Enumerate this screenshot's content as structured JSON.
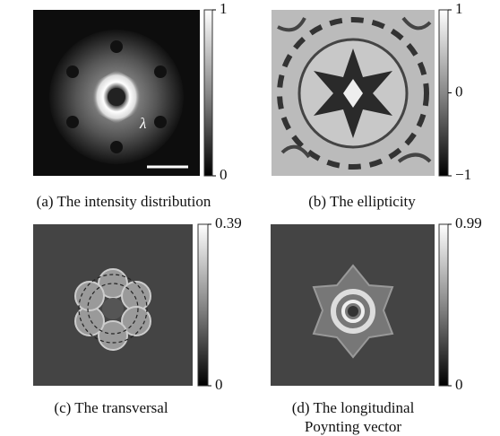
{
  "panels": [
    {
      "caption": [
        "(a) The intensity distribution"
      ],
      "annotation": "λ",
      "colorbar": {
        "range": [
          0,
          1
        ],
        "ticks": [
          1,
          0
        ]
      }
    },
    {
      "caption": [
        "(b) The ellipticity"
      ],
      "colorbar": {
        "range": [
          -1,
          1
        ],
        "ticks": [
          1,
          0,
          {
            "value": -1,
            "label": "−1"
          }
        ]
      }
    },
    {
      "caption": [
        "(c) The transversal"
      ],
      "colorbar": {
        "range": [
          0,
          0.39
        ],
        "ticks": [
          0.39,
          0
        ]
      }
    },
    {
      "caption": [
        "(d) The longitudinal",
        "Poynting vector"
      ],
      "colorbar": {
        "range": [
          0,
          0.99
        ],
        "ticks": [
          0.99,
          0
        ]
      }
    }
  ]
}
